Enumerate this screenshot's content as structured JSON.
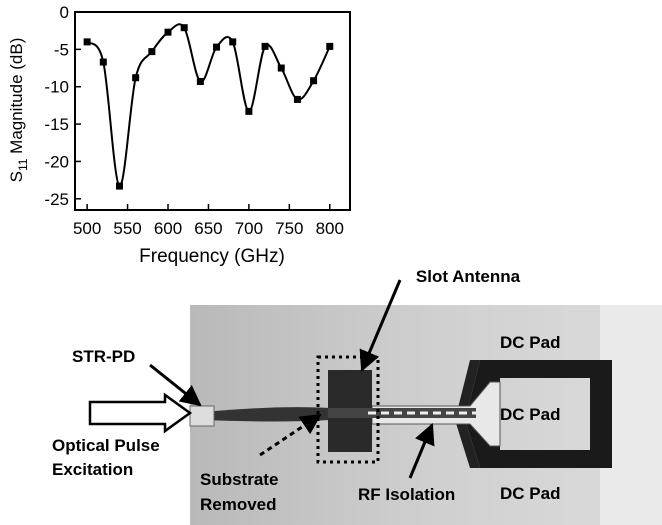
{
  "chart_data": {
    "type": "line",
    "xlabel": "Frequency (GHz)",
    "ylabel_parts": [
      "S",
      "11",
      " Magnitude (dB)"
    ],
    "x": [
      500,
      520,
      540,
      560,
      580,
      600,
      620,
      640,
      660,
      680,
      700,
      720,
      740,
      760,
      780,
      800
    ],
    "series": [
      {
        "color": "#000000",
        "values": [
          -4,
          -6.7,
          -23.3,
          -8.8,
          -5.3,
          -2.7,
          -2.1,
          -9.3,
          -4.7,
          -4,
          -13.3,
          -4.6,
          -7.5,
          -11.7,
          -9.2,
          -4.6
        ]
      }
    ],
    "xlim": [
      485,
      825
    ],
    "xticks": [
      500,
      550,
      600,
      650,
      700,
      750,
      800
    ],
    "ylim": [
      -26.5,
      0
    ],
    "yticks": [
      0,
      -5,
      -10,
      -15,
      -20,
      -25
    ]
  },
  "photo": {
    "labels": {
      "slot_antenna": "Slot Antenna",
      "str_pd": "STR-PD",
      "optical_1": "Optical Pulse",
      "optical_2": "Excitation",
      "substrate_1": "Substrate",
      "substrate_2": "Removed",
      "rf_isolation": "RF Isolation",
      "dc_pad_top": "DC Pad",
      "dc_pad_mid": "DC Pad",
      "dc_pad_bottom": "DC Pad"
    }
  }
}
